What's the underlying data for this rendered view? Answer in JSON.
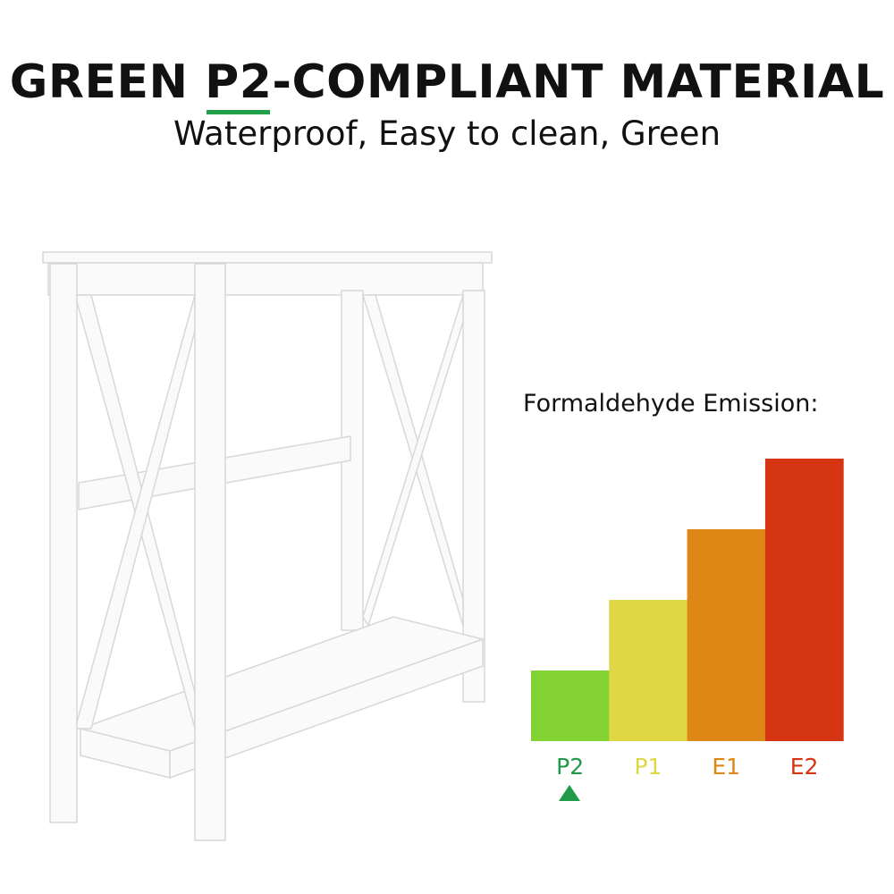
{
  "header": {
    "title_pre": "GREEN ",
    "title_highlight": "P2",
    "title_post": "-COMPLIANT MATERIAL",
    "subtitle": "Waterproof, Easy to clean, Green"
  },
  "accent_color": "#21a04a",
  "chart_label": "Formaldehyde Emission:",
  "chart_data": {
    "type": "bar",
    "categories": [
      "P2",
      "P1",
      "E1",
      "E2"
    ],
    "values": [
      1,
      2,
      3,
      4
    ],
    "colors": [
      "#84d334",
      "#dfd844",
      "#de8717",
      "#d63513"
    ],
    "label_colors": [
      "#1f9a48",
      "#dfd844",
      "#de8717",
      "#d63513"
    ],
    "marker": "triangle-up under P2",
    "axes": "none",
    "grid": false
  }
}
